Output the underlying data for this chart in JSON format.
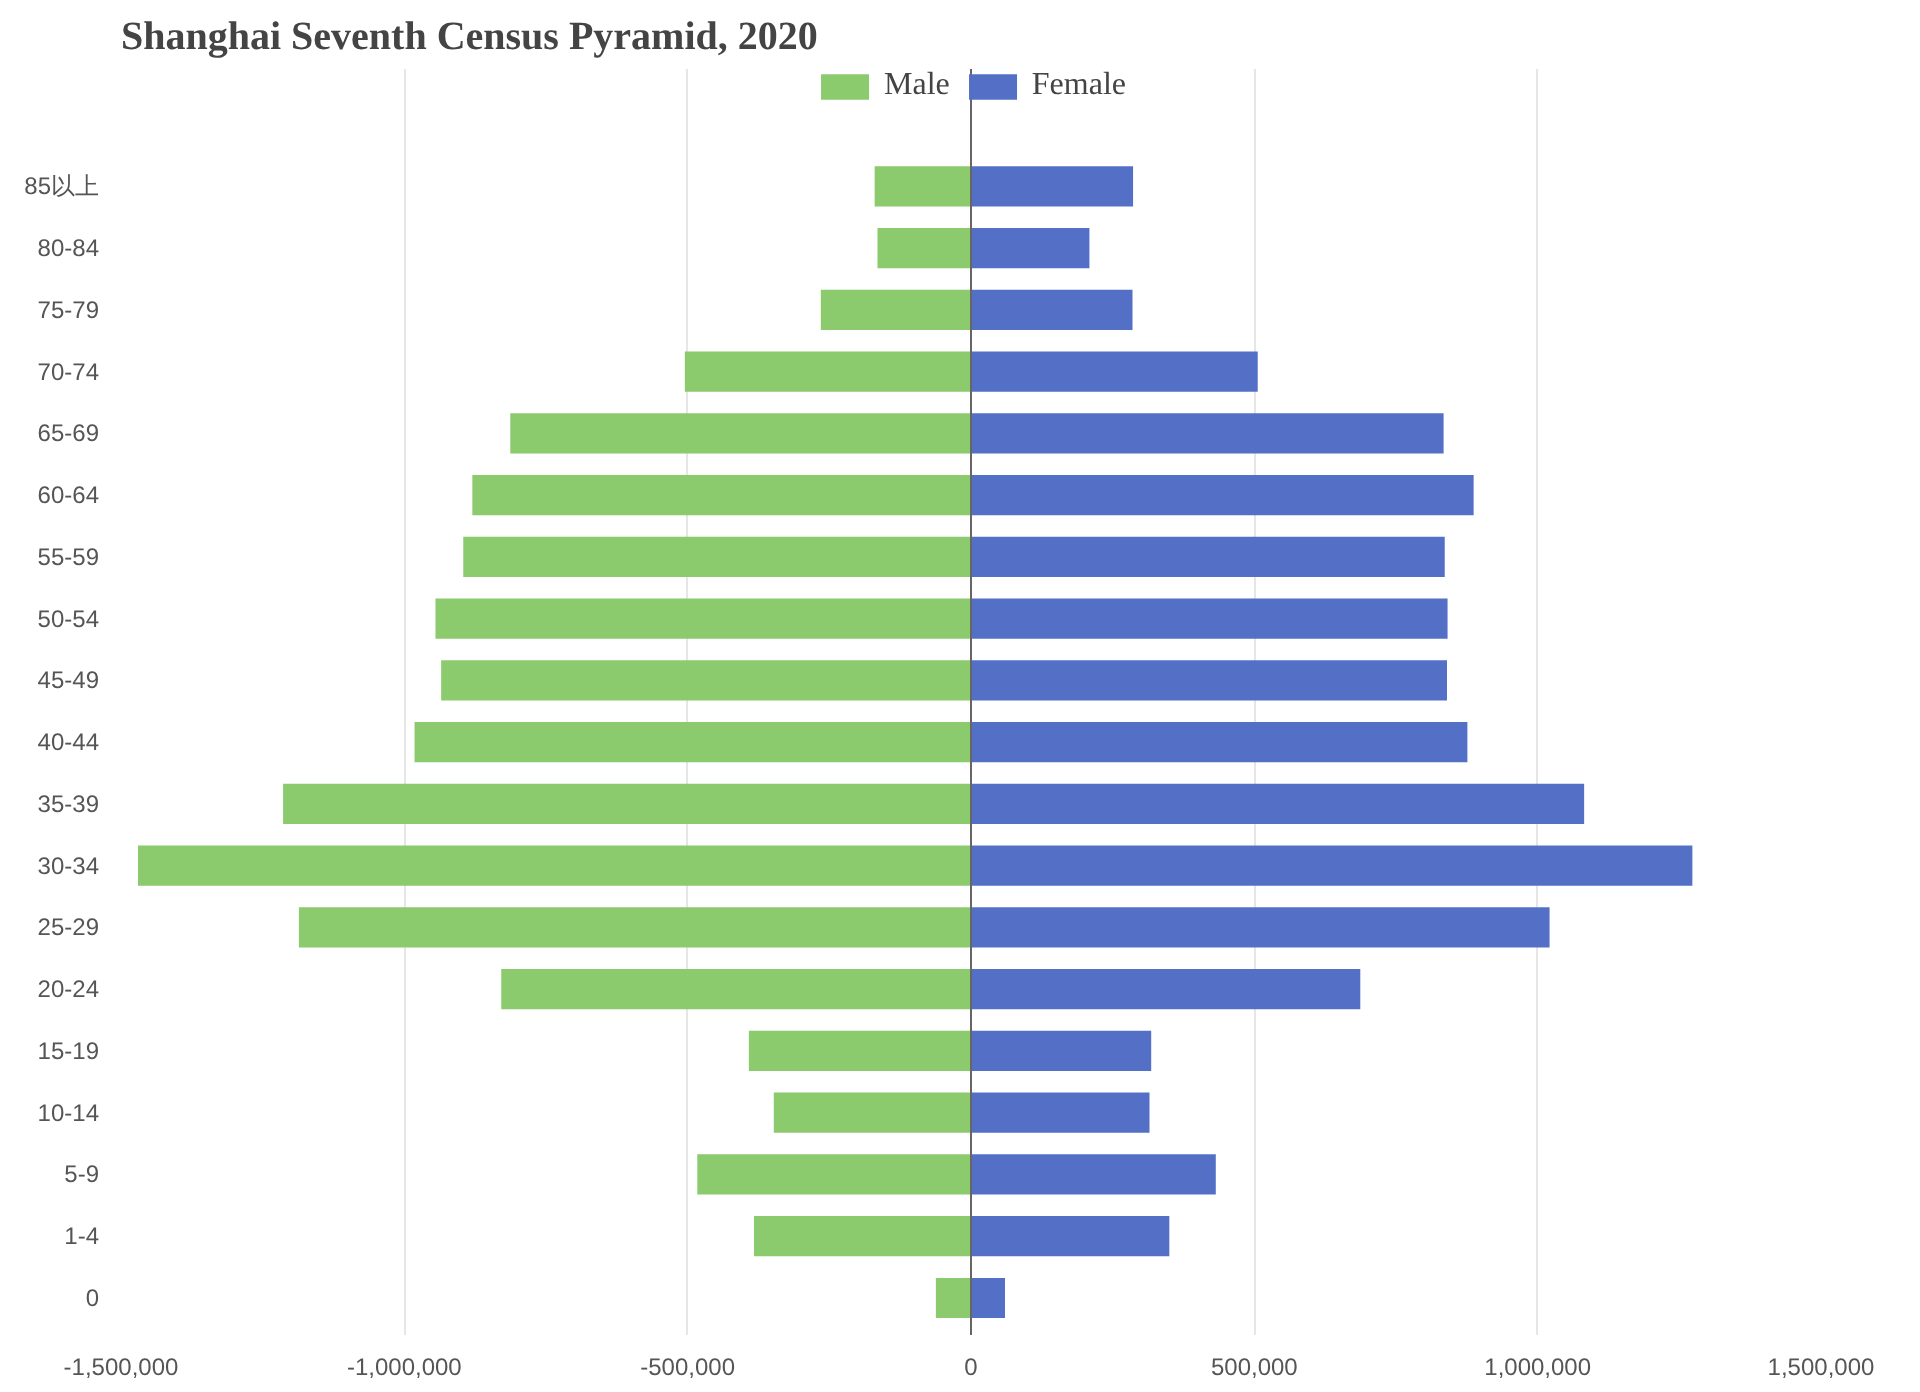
{
  "chart_data": {
    "type": "bar",
    "orientation": "horizontal",
    "stacked": true,
    "title": "Shanghai Seventh Census Pyramid, 2020",
    "categories": [
      "85以上",
      "80-84",
      "75-79",
      "70-74",
      "65-69",
      "60-64",
      "55-59",
      "50-54",
      "45-49",
      "40-44",
      "35-39",
      "30-34",
      "25-29",
      "20-24",
      "15-19",
      "10-14",
      "5-9",
      "1-4",
      "0"
    ],
    "series": [
      {
        "name": "Male",
        "color": "#8cca6e",
        "values": [
          -170000,
          -165000,
          -265000,
          -505000,
          -813000,
          -880000,
          -896000,
          -945000,
          -935000,
          -982000,
          -1214000,
          -1470000,
          -1186000,
          -829000,
          -392000,
          -348000,
          -483000,
          -383000,
          -62000
        ]
      },
      {
        "name": "Female",
        "color": "#5470c6",
        "values": [
          286000,
          209000,
          285000,
          506000,
          834000,
          887000,
          836000,
          841000,
          840000,
          876000,
          1082000,
          1273000,
          1021000,
          687000,
          318000,
          315000,
          432000,
          350000,
          60000
        ]
      }
    ],
    "xlim": [
      -1500000,
      1500000
    ],
    "xticks": [
      {
        "value": -1500000,
        "label": "-1,500,000"
      },
      {
        "value": -1000000,
        "label": "-1,000,000"
      },
      {
        "value": -500000,
        "label": "-500,000"
      },
      0,
      {
        "value": 500000,
        "label": "500,000"
      },
      {
        "value": 1000000,
        "label": "1,000,000"
      },
      {
        "value": 1500000,
        "label": "1,500,000"
      }
    ],
    "grid": "x",
    "legend": "top"
  }
}
